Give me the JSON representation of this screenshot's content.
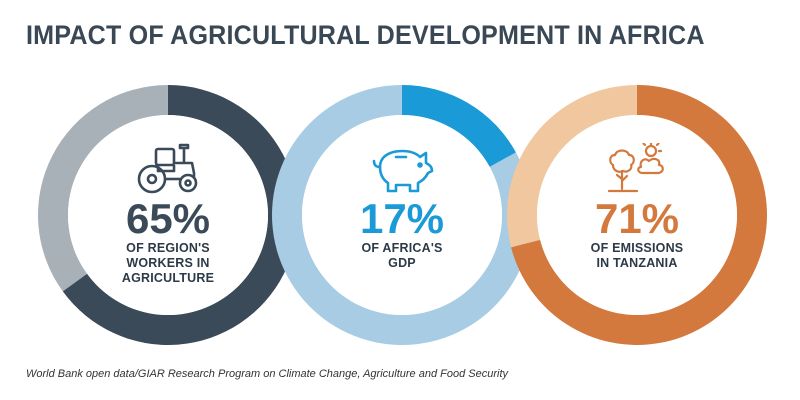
{
  "title": "IMPACT OF AGRICULTURAL DEVELOPMENT IN AFRICA",
  "source": "World Bank open data/GIAR Research Program on Climate Change, Agriculture and Food Security",
  "chart_data": [
    {
      "type": "pie",
      "value": 65,
      "value_text": "65%",
      "label_lines": [
        "OF REGION'S",
        "WORKERS IN",
        "AGRICULTURE"
      ],
      "icon": "tractor-icon",
      "fg_color": "#3b4a59",
      "bg_color": "#a9b1b8",
      "text_color": "#3b4a59"
    },
    {
      "type": "pie",
      "value": 17,
      "value_text": "17%",
      "label_lines": [
        "OF AFRICA'S",
        "GDP"
      ],
      "icon": "piggy-bank-icon",
      "fg_color": "#1a9ad6",
      "bg_color": "#a7cce3",
      "text_color": "#1a9ad6"
    },
    {
      "type": "pie",
      "value": 71,
      "value_text": "71%",
      "label_lines": [
        "OF EMISSIONS",
        "IN TANZANIA"
      ],
      "icon": "weather-tree-icon",
      "fg_color": "#d4793d",
      "bg_color": "#f0c79f",
      "text_color": "#d4793d"
    }
  ]
}
